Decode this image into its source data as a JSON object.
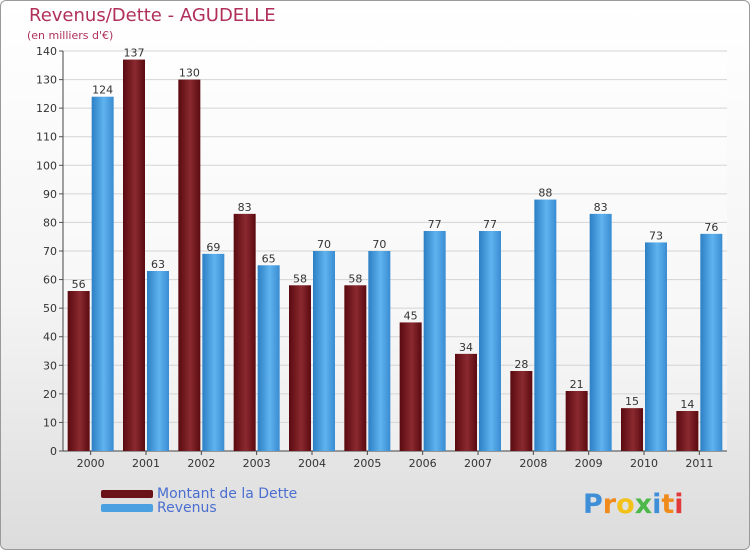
{
  "title": "Revenus/Dette - AGUDELLE",
  "subtitle": "(en milliers d'€)",
  "legend": [
    {
      "label": "Montant de la Dette",
      "color": "#7a1a20"
    },
    {
      "label": "Revenus",
      "color": "#4aa0e0"
    }
  ],
  "logo": {
    "text": "Proxiti",
    "letters": [
      {
        "ch": "P",
        "color": "#3e8fd8"
      },
      {
        "ch": "r",
        "color": "#f08a1a"
      },
      {
        "ch": "o",
        "color": "#f2c21a"
      },
      {
        "ch": "x",
        "color": "#4db84a"
      },
      {
        "ch": "i",
        "color": "#3e8fd8"
      },
      {
        "ch": "t",
        "color": "#f08a1a"
      },
      {
        "ch": "i",
        "color": "#e23a3a"
      }
    ]
  },
  "chart_data": {
    "type": "bar",
    "title": "Revenus/Dette - AGUDELLE",
    "subtitle": "(en milliers d'€)",
    "xlabel": "",
    "ylabel": "",
    "categories": [
      "2000",
      "2001",
      "2002",
      "2003",
      "2004",
      "2005",
      "2006",
      "2007",
      "2008",
      "2009",
      "2010",
      "2011"
    ],
    "series": [
      {
        "name": "Montant de la Dette",
        "color": "#7a1a20",
        "values": [
          56,
          137,
          130,
          83,
          58,
          58,
          45,
          34,
          28,
          21,
          15,
          14
        ]
      },
      {
        "name": "Revenus",
        "color": "#4aa0e0",
        "values": [
          124,
          63,
          69,
          65,
          70,
          70,
          77,
          77,
          88,
          83,
          73,
          76
        ]
      }
    ],
    "ylim": [
      0,
      140
    ],
    "yticks": [
      0,
      10,
      20,
      30,
      40,
      50,
      60,
      70,
      80,
      90,
      100,
      110,
      120,
      130,
      140
    ],
    "grid": true,
    "legend_position": "bottom-left"
  }
}
